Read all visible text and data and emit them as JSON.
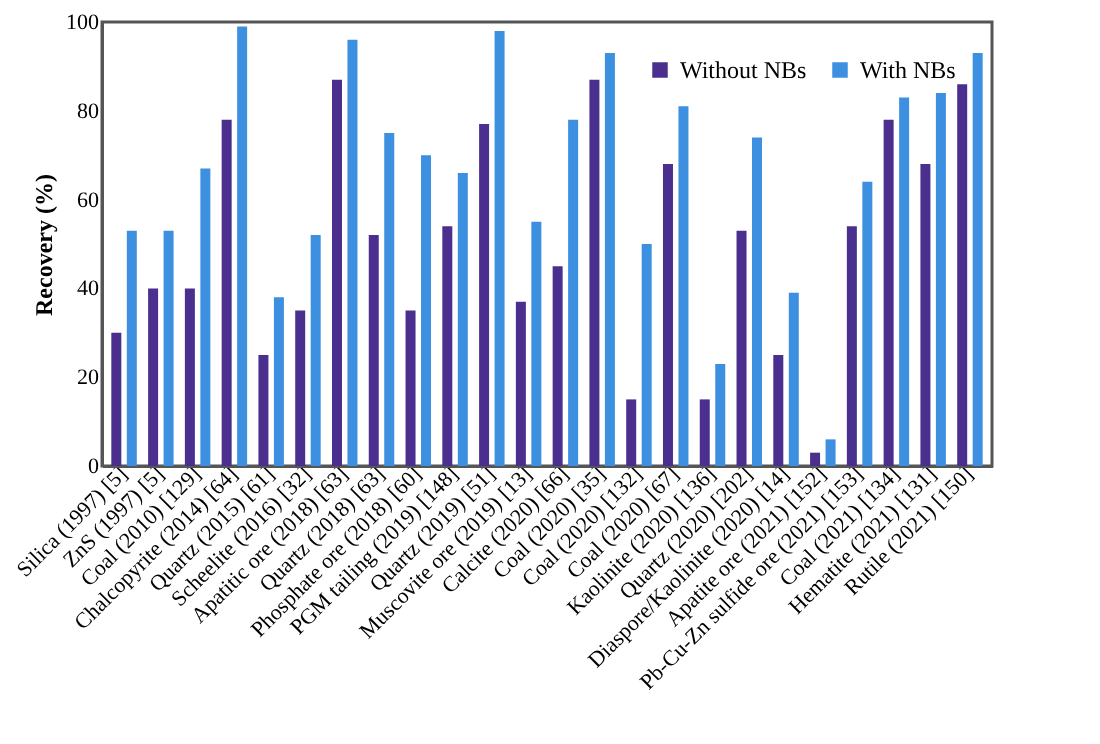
{
  "chart_data": {
    "type": "bar",
    "ylabel": "Recovery (%)",
    "categories": [
      "Silica (1997) [5]",
      "ZnS (1997) [5]",
      "Coal (2010) [129]",
      "Chalcopyrite (2014) [64]",
      "Quartz (2015) [61]",
      "Scheelite (2016) [32]",
      "Apatitic ore (2018) [63]",
      "Quartz (2018) [63]",
      "Phosphate ore (2018) [60]",
      "PGM tailing (2019) [148]",
      "Quartz (2019) [51]",
      "Muscovite ore (2019) [13]",
      "Calcite (2020) [66]",
      "Coal (2020) [35]",
      "Coal (2020) [132]",
      "Coal (2020) [67]",
      "Kaolinite (2020) [136]",
      "Quartz (2020) [202]",
      "Diaspore/Kaolinite (2020) [14]",
      "Apatite ore (2021) [152]",
      "Pb-Cu-Zn sulfide ore (2021) [153]",
      "Coal (2021) [134]",
      "Hematite (2021) [131]",
      "Rutile (2021) [150]"
    ],
    "series": [
      {
        "name": "Without NBs",
        "color": "#4a2f8f",
        "values": [
          30,
          40,
          40,
          78,
          25,
          35,
          87,
          52,
          35,
          54,
          77,
          37,
          45,
          87,
          15,
          68,
          15,
          53,
          25,
          3,
          54,
          78,
          68,
          86
        ]
      },
      {
        "name": "With NBs",
        "color": "#3d8fe0",
        "values": [
          53,
          53,
          67,
          99,
          38,
          52,
          96,
          75,
          70,
          66,
          98,
          55,
          78,
          93,
          50,
          81,
          23,
          74,
          39,
          6,
          64,
          83,
          84,
          93
        ]
      }
    ],
    "ylim": [
      0,
      100
    ],
    "yticks": [
      0,
      20,
      40,
      60,
      80,
      100
    ],
    "grid": false,
    "legend": "top right"
  }
}
